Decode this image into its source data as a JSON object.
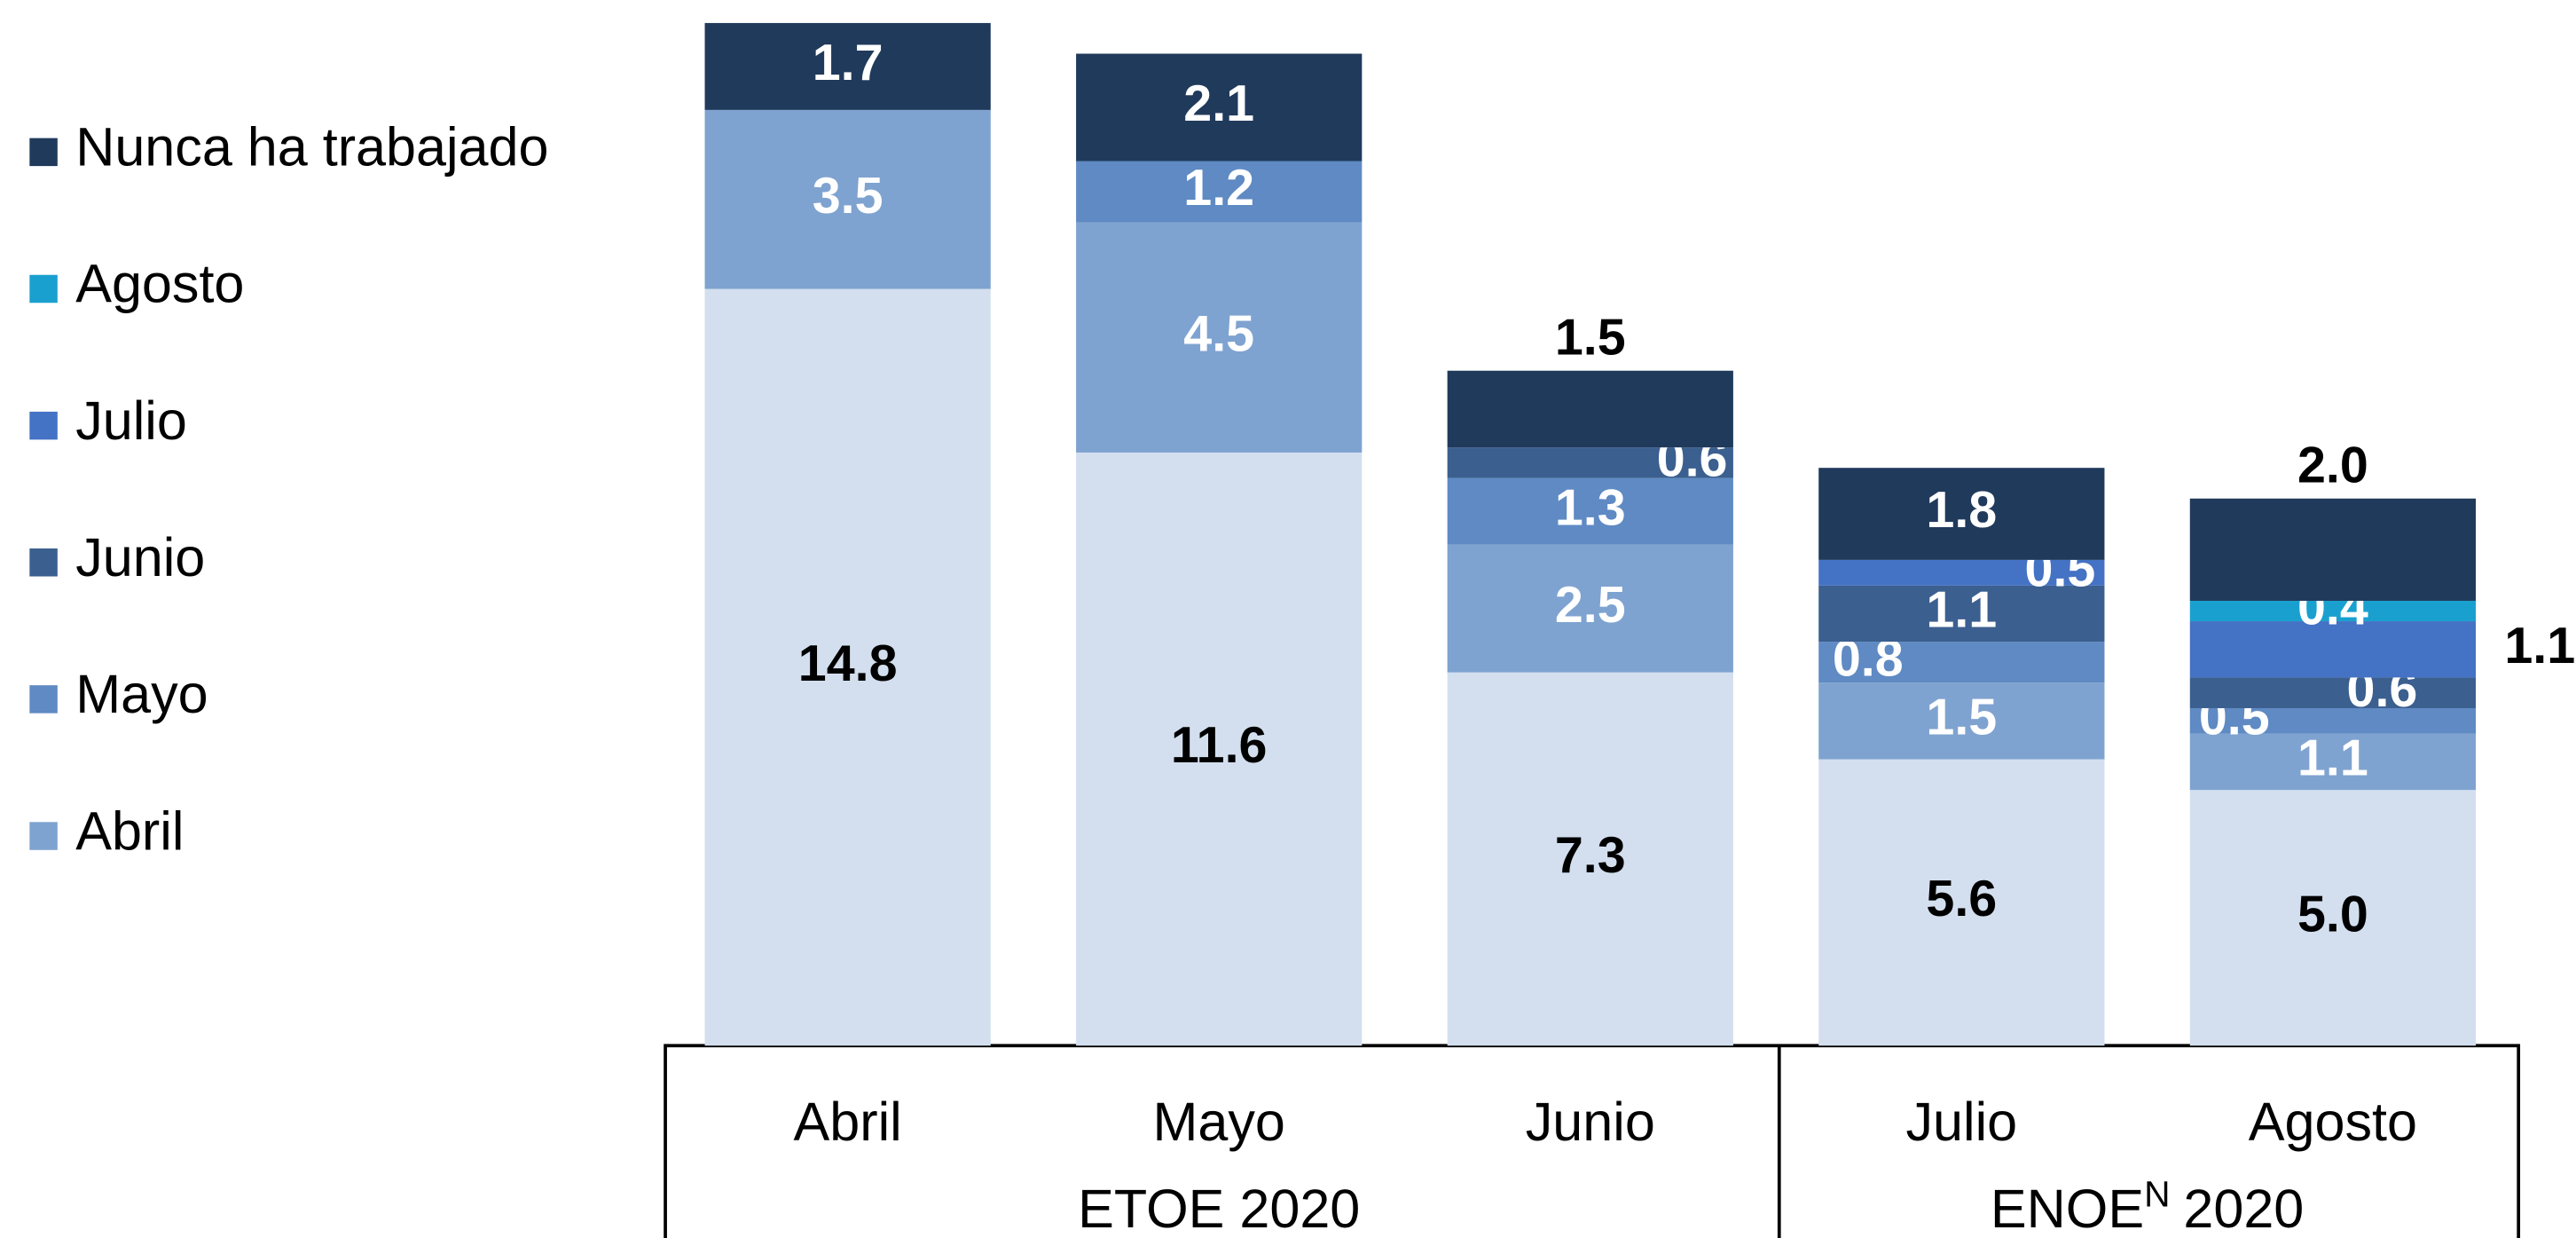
{
  "chart_data": {
    "type": "stacked-bar",
    "categories": [
      "Abril",
      "Mayo",
      "Junio",
      "Julio",
      "Agosto"
    ],
    "groups": [
      {
        "label": "ETOE 2020"
      },
      {
        "label": "ENOE",
        "superscript": "N",
        "suffix": "2020"
      }
    ],
    "series": [
      {
        "color": "#d3dfee",
        "values": [
          14.8,
          11.6,
          7.3,
          5.6,
          5.0
        ],
        "value_labels": [
          "14.8",
          "11.6",
          "7.3",
          "5.6",
          "5.0"
        ]
      },
      {
        "name": "Abril",
        "color": "#7fa3d0",
        "values": [
          3.5,
          4.5,
          2.5,
          1.5,
          1.1
        ]
      },
      {
        "name": "Mayo",
        "color": "#5f8ac3",
        "values": [
          null,
          1.2,
          1.3,
          0.8,
          0.5
        ]
      },
      {
        "name": "Junio",
        "color": "#3b5f8f",
        "values": [
          null,
          null,
          0.6,
          1.1,
          0.6
        ]
      },
      {
        "name": "Julio",
        "color": "#4472c4",
        "values": [
          null,
          null,
          null,
          0.5,
          1.1
        ]
      },
      {
        "name": "Agosto",
        "color": "#1aa0cf",
        "values": [
          null,
          null,
          null,
          null,
          0.4
        ]
      },
      {
        "name": "Nunca ha trabajado",
        "color": "#203a5c",
        "values": [
          1.7,
          2.1,
          1.5,
          1.8,
          2.0
        ],
        "value_labels": [
          "1.7",
          "2.1",
          "1.5",
          "1.8",
          "2.0"
        ]
      }
    ]
  }
}
